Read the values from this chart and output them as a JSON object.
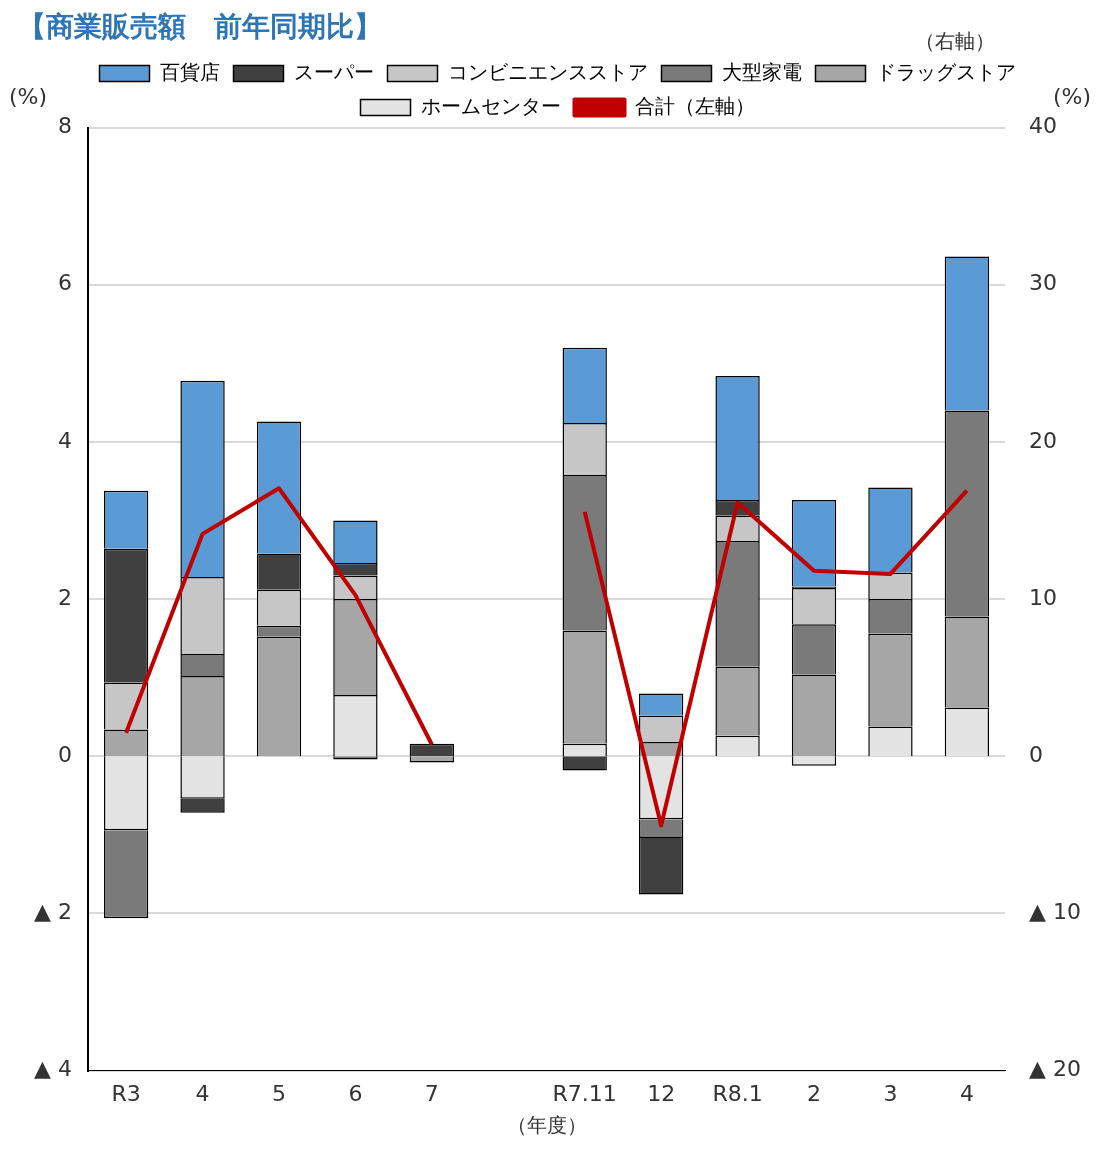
{
  "chart_data": {
    "type": "bar",
    "title": "【商業販売額　前年同期比】",
    "xlabel": "（年度）",
    "ylabel": "(%)",
    "y2label": "(%)",
    "annotations": [
      "（右軸）"
    ],
    "stacked": true,
    "categories": [
      "R3",
      "4",
      "5",
      "6",
      "7",
      null,
      "R7.11",
      "12",
      "R8.1",
      "2",
      "3",
      "4"
    ],
    "series": [
      {
        "name": "ホームセンター",
        "color": "#e3e3e3",
        "axis": "y2",
        "values": [
          -4.7,
          -2.7,
          null,
          3.9,
          null,
          null,
          0.8,
          -4.0,
          1.3,
          -0.6,
          1.9,
          3.1
        ]
      },
      {
        "name": "ドラッグストア",
        "color": "#a6a6a6",
        "axis": "y2",
        "values": [
          1.7,
          5.1,
          7.6,
          6.1,
          -0.4,
          null,
          7.2,
          0.9,
          4.4,
          5.2,
          5.9,
          5.8
        ]
      },
      {
        "name": "大型家電",
        "color": "#7a7a7a",
        "axis": "y2",
        "values": [
          -5.6,
          1.4,
          0.7,
          -0.2,
          null,
          null,
          9.9,
          -1.2,
          8.0,
          3.2,
          2.2,
          13.1
        ]
      },
      {
        "name": "コンビニエンスストア",
        "color": "#c6c6c6",
        "axis": "y2",
        "values": [
          3.0,
          4.9,
          2.3,
          1.5,
          null,
          null,
          3.3,
          1.7,
          1.6,
          2.3,
          1.7,
          null
        ]
      },
      {
        "name": "スーパー",
        "color": "#404040",
        "axis": "y2",
        "values": [
          8.5,
          -0.9,
          2.3,
          0.8,
          0.8,
          null,
          -0.9,
          -3.6,
          1.0,
          0.1,
          null,
          null
        ]
      },
      {
        "name": "百貨店",
        "color": "#5b9bd5",
        "axis": "y2",
        "values": [
          3.7,
          12.5,
          8.4,
          2.7,
          null,
          null,
          4.8,
          1.4,
          7.9,
          5.5,
          5.4,
          9.8
        ]
      },
      {
        "name": "合計（左軸）",
        "type": "line",
        "color": "#c00000",
        "axis": "y",
        "values": [
          0.3,
          2.83,
          3.41,
          2.05,
          0.15,
          null,
          3.11,
          -0.88,
          3.23,
          2.36,
          2.32,
          3.38
        ]
      }
    ],
    "ylim": [
      -4,
      8
    ],
    "yticks": [
      {
        "value": -4,
        "label": "▲ 4"
      },
      {
        "value": -2,
        "label": "▲ 2"
      },
      0,
      2,
      4,
      6,
      8
    ],
    "y2lim": [
      -20,
      40
    ],
    "y2ticks": [
      {
        "value": -20,
        "label": "▲ 20"
      },
      {
        "value": -10,
        "label": "▲ 10"
      },
      0,
      10,
      20,
      30,
      40
    ],
    "grid": "y",
    "legend": "top",
    "marker": "none",
    "line_style": "solid"
  }
}
